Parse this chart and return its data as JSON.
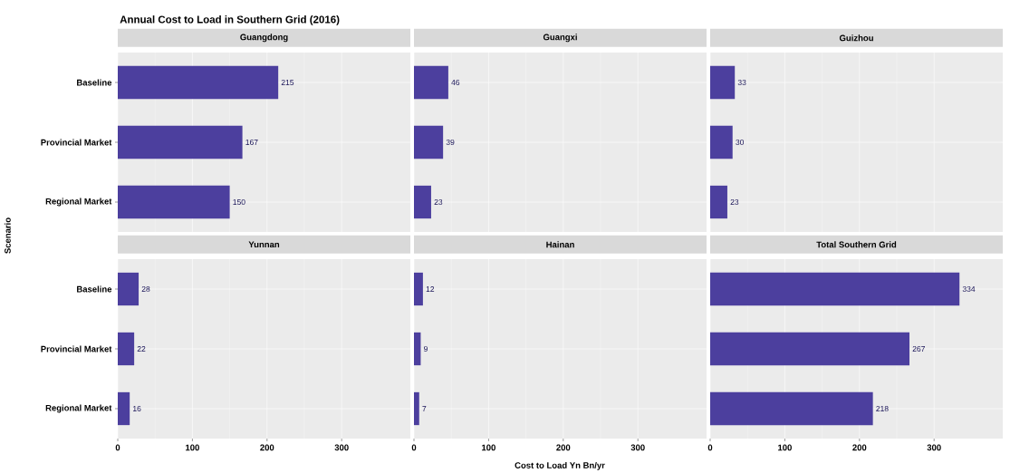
{
  "chart_data": [
    {
      "type": "bar",
      "orientation": "horizontal",
      "title": "Guangdong",
      "annotations": [
        "Annual Cost to Load in Southern Grid (2016)"
      ],
      "ylabel": "Scenario",
      "categories": [
        "Baseline",
        "Provincial Market",
        "Regional Market"
      ],
      "values": [
        215,
        167,
        150
      ],
      "color": "#4c3f9e",
      "data_labels": true,
      "xlim": [
        0,
        392
      ],
      "xticks": [
        0,
        100,
        200,
        300
      ],
      "grid": true,
      "tick_labels": "y"
    },
    {
      "type": "bar",
      "orientation": "horizontal",
      "title": "Guangxi",
      "categories": [
        null,
        null,
        null
      ],
      "values": [
        46,
        39,
        23
      ],
      "color": "#4c3f9e",
      "data_labels": true,
      "xlim": [
        0,
        392
      ],
      "xticks": [
        0,
        100,
        200,
        300
      ],
      "grid": true,
      "tick_labels": false
    },
    {
      "type": "bar",
      "orientation": "horizontal",
      "title": "Guizhou",
      "categories": [
        null,
        null,
        null
      ],
      "values": [
        33,
        30,
        23
      ],
      "color": "#4c3f9e",
      "data_labels": true,
      "xlim": [
        0,
        392
      ],
      "xticks": [
        0,
        100,
        200,
        300
      ],
      "grid": true,
      "tick_labels": false
    },
    {
      "type": "bar",
      "orientation": "horizontal",
      "title": "Yunnan",
      "categories": [
        "Baseline",
        "Provincial Market",
        "Regional Market"
      ],
      "values": [
        28,
        22,
        16
      ],
      "color": "#4c3f9e",
      "data_labels": true,
      "xlim": [
        0,
        392
      ],
      "xticks": [
        0,
        100,
        200,
        300
      ],
      "grid": true
    },
    {
      "type": "bar",
      "orientation": "horizontal",
      "title": "Hainan",
      "xlabel": "Cost to Load Yn Bn/yr",
      "categories": [
        null,
        null,
        null
      ],
      "values": [
        12,
        9,
        7
      ],
      "color": "#4c3f9e",
      "data_labels": true,
      "xlim": [
        0,
        392
      ],
      "xticks": [
        0,
        100,
        200,
        300
      ],
      "grid": true,
      "tick_labels": "x"
    },
    {
      "type": "bar",
      "orientation": "horizontal",
      "title": "Total Southern Grid",
      "categories": [
        null,
        null,
        null
      ],
      "values": [
        334,
        267,
        218
      ],
      "color": "#4c3f9e",
      "data_labels": true,
      "xlim": [
        0,
        392
      ],
      "xticks": [
        0,
        100,
        200,
        300
      ],
      "grid": true,
      "tick_labels": "x"
    }
  ]
}
